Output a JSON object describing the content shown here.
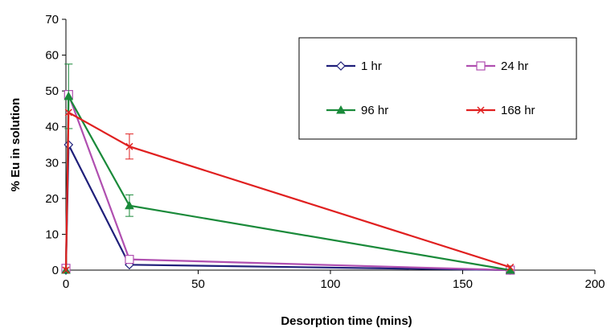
{
  "chart_data": {
    "type": "line",
    "title": "",
    "xlabel": "Desorption  time (mins)",
    "ylabel": "% Eu in solution",
    "xlim": [
      0,
      200
    ],
    "ylim": [
      0,
      70
    ],
    "xticks": [
      "0",
      "50",
      "100",
      "150",
      "200"
    ],
    "yticks": [
      "0",
      "10",
      "20",
      "30",
      "40",
      "50",
      "60",
      "70"
    ],
    "grid": false,
    "legend_position": "top-right",
    "x": [
      0,
      1,
      24,
      168
    ],
    "series": [
      {
        "name": "1 hr",
        "color": "#1f1f7a",
        "marker": "diamond",
        "values": [
          0,
          35,
          1.5,
          0
        ],
        "error": [
          0,
          0,
          0,
          0
        ]
      },
      {
        "name": "24 hr",
        "color": "#b04fb0",
        "marker": "square",
        "values": [
          0.5,
          49,
          3,
          0
        ],
        "error": [
          0,
          1,
          0,
          0
        ]
      },
      {
        "name": "96 hr",
        "color": "#1a8a3a",
        "marker": "triangle",
        "values": [
          0,
          48.5,
          18,
          0
        ],
        "error": [
          0,
          9,
          3,
          0
        ]
      },
      {
        "name": "168 hr",
        "color": "#e02020",
        "marker": "x",
        "values": [
          0,
          44,
          34.5,
          0.8
        ],
        "error": [
          0,
          0,
          3.5,
          0
        ]
      }
    ]
  }
}
